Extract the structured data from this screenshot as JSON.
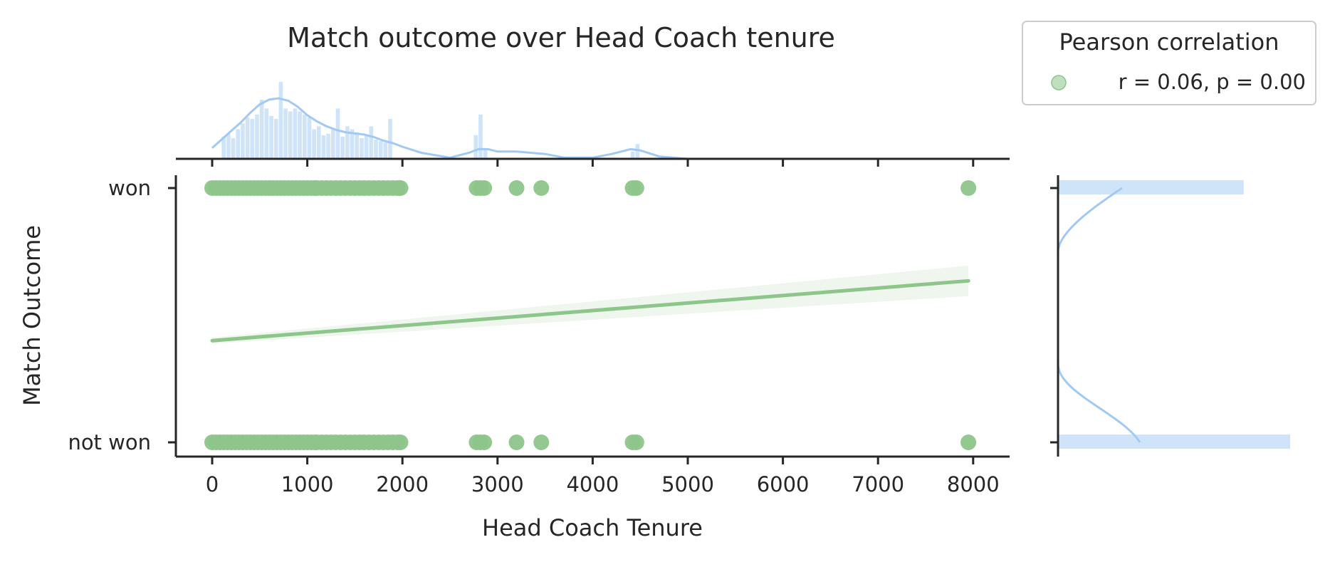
{
  "chart_data": {
    "type": "scatter",
    "title": "Match outcome over Head Coach tenure",
    "xlabel": "Head Coach Tenure",
    "ylabel": "Match Outcome",
    "xlim": [
      -380,
      8300
    ],
    "x_ticks": [
      0,
      1000,
      2000,
      3000,
      4000,
      5000,
      6000,
      7000,
      8000
    ],
    "y_categories": [
      "not won",
      "won"
    ],
    "grid": false,
    "legend": {
      "title": "Pearson correlation",
      "entries": [
        {
          "label": "r = 0.06, p = 0.00",
          "color": "#8dc58a"
        }
      ],
      "position": "top-right outside"
    },
    "series": [
      {
        "outcome": "won",
        "x": [
          0,
          40,
          80,
          120,
          160,
          200,
          240,
          280,
          320,
          360,
          400,
          440,
          480,
          520,
          560,
          600,
          640,
          680,
          720,
          760,
          800,
          840,
          880,
          920,
          960,
          1000,
          1040,
          1080,
          1100,
          1150,
          1200,
          1250,
          1300,
          1350,
          1400,
          1450,
          1500,
          1550,
          1600,
          1650,
          1700,
          1750,
          1800,
          1850,
          1900,
          1950,
          1980,
          2780,
          2820,
          2860,
          3200,
          3460,
          4420,
          4460,
          7950
        ]
      },
      {
        "outcome": "not won",
        "x": [
          0,
          40,
          80,
          120,
          160,
          200,
          240,
          280,
          320,
          360,
          400,
          440,
          480,
          520,
          560,
          600,
          640,
          680,
          720,
          760,
          800,
          840,
          880,
          920,
          960,
          1000,
          1040,
          1080,
          1100,
          1150,
          1200,
          1250,
          1300,
          1350,
          1400,
          1450,
          1500,
          1550,
          1600,
          1650,
          1700,
          1750,
          1800,
          1850,
          1900,
          1950,
          1980,
          2780,
          2820,
          2860,
          3200,
          3460,
          4420,
          4460,
          7950
        ]
      }
    ],
    "regression": {
      "x": [
        0,
        7950
      ],
      "y": [
        0.4,
        0.635
      ],
      "ci_width_end": [
        0.012,
        0.06
      ]
    },
    "marginal_x_hist": {
      "bin_width": 50,
      "bins_x": [
        100,
        150,
        200,
        250,
        300,
        350,
        400,
        450,
        500,
        550,
        600,
        650,
        700,
        750,
        800,
        850,
        900,
        950,
        1000,
        1050,
        1100,
        1150,
        1200,
        1250,
        1300,
        1350,
        1400,
        1450,
        1500,
        1550,
        1600,
        1650,
        1700,
        1750,
        1800,
        1850,
        2750,
        2800,
        2850,
        4400,
        4450
      ],
      "counts": [
        15,
        17,
        14,
        20,
        24,
        28,
        27,
        30,
        40,
        34,
        29,
        27,
        52,
        34,
        32,
        34,
        32,
        30,
        28,
        20,
        22,
        16,
        17,
        20,
        34,
        15,
        22,
        20,
        18,
        14,
        16,
        22,
        13,
        12,
        11,
        27,
        16,
        30,
        7,
        5,
        10
      ]
    },
    "marginal_x_kde": {
      "x": [
        0,
        100,
        200,
        300,
        400,
        500,
        600,
        700,
        800,
        900,
        1000,
        1100,
        1200,
        1300,
        1400,
        1500,
        1600,
        1700,
        1800,
        1900,
        2000,
        2200,
        2500,
        2700,
        2800,
        2900,
        3000,
        3200,
        3500,
        3700,
        4000,
        4200,
        4400,
        4500,
        4700,
        5000
      ],
      "density": [
        0.09,
        0.16,
        0.23,
        0.3,
        0.38,
        0.45,
        0.49,
        0.5,
        0.48,
        0.43,
        0.36,
        0.31,
        0.27,
        0.24,
        0.22,
        0.21,
        0.2,
        0.18,
        0.15,
        0.13,
        0.1,
        0.05,
        0.01,
        0.05,
        0.08,
        0.08,
        0.06,
        0.06,
        0.04,
        0.01,
        0.01,
        0.04,
        0.08,
        0.07,
        0.02,
        0.0
      ]
    },
    "marginal_y_hist": [
      {
        "category": "won",
        "count": 0.8
      },
      {
        "category": "not won",
        "count": 1.0
      }
    ]
  }
}
